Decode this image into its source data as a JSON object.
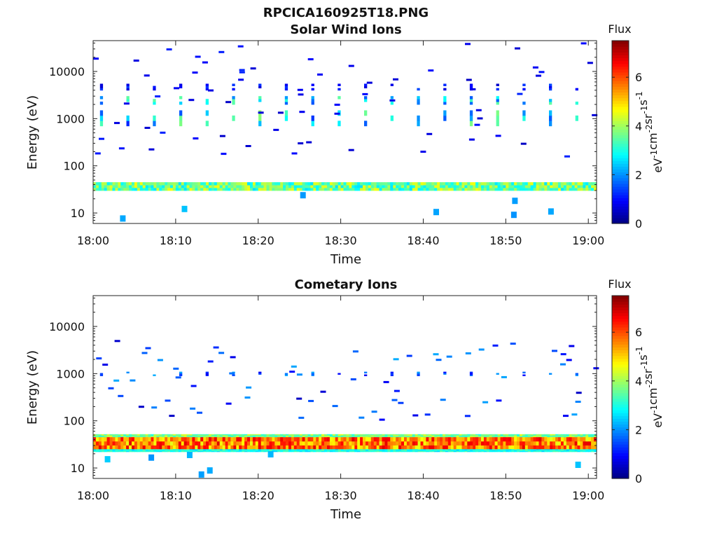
{
  "figure": {
    "title": "RPCICA160925T18.PNG",
    "panels": [
      {
        "title": "Solar Wind Ions",
        "xlabel": "Time",
        "ylabel": "Energy (eV)",
        "colorbar_title": "Flux",
        "colorbar_label": "eV-1cm-2sr-1s-1",
        "colorbar_ticks": [
          "0",
          "2",
          "4",
          "6"
        ],
        "y_tick_labels": [
          "10",
          "100",
          "1000",
          "10000"
        ],
        "x_tick_labels": [
          "18:00",
          "18:10",
          "18:20",
          "18:30",
          "18:40",
          "18:50",
          "19:00"
        ]
      },
      {
        "title": "Cometary Ions",
        "xlabel": "Time",
        "ylabel": "Energy (eV)",
        "colorbar_title": "Flux",
        "colorbar_label": "eV-1cm-2sr-1s-1",
        "colorbar_ticks": [
          "0",
          "2",
          "4",
          "6"
        ],
        "y_tick_labels": [
          "10",
          "100",
          "1000",
          "10000"
        ],
        "x_tick_labels": [
          "18:00",
          "18:10",
          "18:20",
          "18:30",
          "18:40",
          "18:50",
          "19:00"
        ]
      }
    ]
  },
  "chart_data": [
    {
      "type": "heatmap",
      "title": "Solar Wind Ions",
      "xlabel": "Time",
      "ylabel": "Energy (eV)",
      "x_range": [
        "18:00",
        "19:01"
      ],
      "y_scale": "log",
      "y_range": [
        6,
        45000
      ],
      "colorbar": {
        "label": "Flux",
        "units": "eV-1cm-2sr-1s-1",
        "range": [
          0,
          7.5
        ],
        "colormap": "jet"
      },
      "bands": [
        {
          "energy_range": [
            30,
            45
          ],
          "time_range": [
            "18:00",
            "19:01"
          ],
          "flux_typical": 3.8,
          "flux_range": [
            2.6,
            4.6
          ],
          "coverage": "continuous"
        },
        {
          "energy_range": [
            700,
            1500
          ],
          "time_range": [
            "18:00",
            "19:01"
          ],
          "flux_typical": 2.8,
          "flux_range": [
            1.2,
            4.0
          ],
          "coverage": "periodic, ~every 3 min"
        },
        {
          "energy_range": [
            2000,
            3000
          ],
          "time_range": [
            "18:00",
            "19:01"
          ],
          "flux_typical": 2.5,
          "flux_range": [
            1.5,
            3.5
          ],
          "coverage": "periodic, ~every 3 min"
        },
        {
          "energy_range": [
            4000,
            5500
          ],
          "time_range": [
            "18:00",
            "19:01"
          ],
          "flux_typical": 1.2,
          "flux_range": [
            0.5,
            1.5
          ],
          "coverage": "periodic, ~every 3 min"
        }
      ],
      "scatter": [
        {
          "energy_range": [
            150,
            40000
          ],
          "flux_range": [
            0.5,
            1.2
          ],
          "note": "sparse low-flux points"
        },
        {
          "energy_range": [
            7,
            25
          ],
          "flux_range": [
            2.0,
            2.5
          ],
          "note": "isolated points"
        }
      ]
    },
    {
      "type": "heatmap",
      "title": "Cometary Ions",
      "xlabel": "Time",
      "ylabel": "Energy (eV)",
      "x_range": [
        "18:00",
        "19:01"
      ],
      "y_scale": "log",
      "y_range": [
        6,
        45000
      ],
      "colorbar": {
        "label": "Flux",
        "units": "eV-1cm-2sr-1s-1",
        "range": [
          0,
          7.5
        ],
        "colormap": "jet"
      },
      "bands": [
        {
          "energy_range": [
            45,
            52
          ],
          "time_range": [
            "18:00",
            "19:01"
          ],
          "flux_typical": 3.8,
          "flux_range": [
            3.0,
            4.5
          ],
          "coverage": "continuous"
        },
        {
          "energy_range": [
            25,
            45
          ],
          "time_range": [
            "18:00",
            "19:01"
          ],
          "flux_typical": 6.0,
          "flux_range": [
            4.5,
            6.8
          ],
          "coverage": "continuous"
        },
        {
          "energy_range": [
            22,
            25
          ],
          "time_range": [
            "18:00",
            "19:01"
          ],
          "flux_typical": 3.0,
          "flux_range": [
            2.5,
            3.5
          ],
          "coverage": "continuous"
        },
        {
          "energy_range": [
            900,
            1100
          ],
          "time_range": [
            "18:00",
            "19:01"
          ],
          "flux_typical": 1.5,
          "flux_range": [
            0.8,
            2.2
          ],
          "coverage": "periodic, ~every 3 min"
        }
      ],
      "scatter": [
        {
          "energy_range": [
            100,
            5000
          ],
          "flux_range": [
            0.5,
            2.3
          ],
          "note": "sparse points"
        },
        {
          "energy_range": [
            7,
            20
          ],
          "flux_range": [
            2.0,
            2.5
          ],
          "note": "isolated points"
        }
      ]
    }
  ]
}
